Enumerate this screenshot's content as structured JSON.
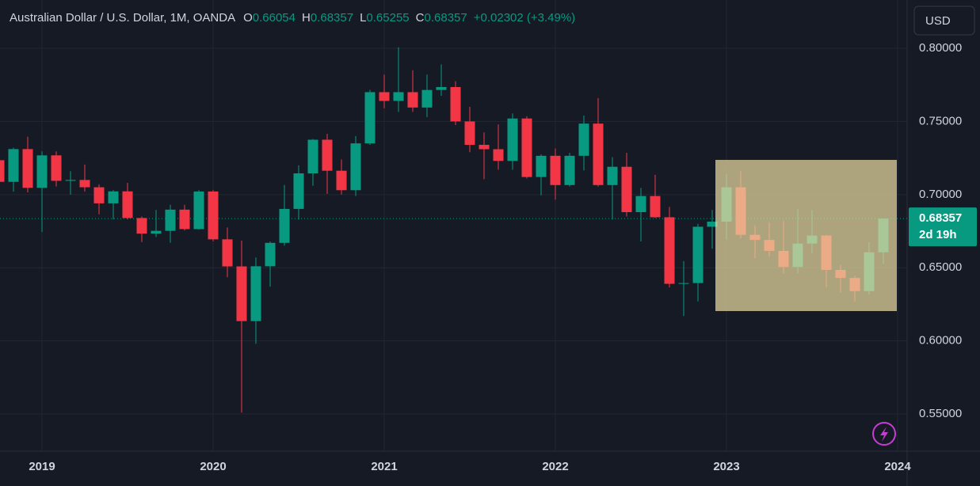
{
  "chart_data": {
    "type": "candlestick",
    "title": "Australian Dollar / U.S. Dollar, 1M, OANDA",
    "ohlc_labels": [
      "O",
      "H",
      "L",
      "C"
    ],
    "change_label": "+0.02302 (+3.49%)",
    "currency": "USD",
    "countdown": "2d 19h",
    "up_color": "#089981",
    "down_color": "#f23645",
    "categories": [
      null,
      null,
      null,
      null,
      null,
      null,
      null,
      null,
      null,
      null,
      null,
      null,
      null,
      null,
      null,
      null,
      null,
      null,
      null,
      null,
      null,
      null,
      null,
      null,
      null,
      null,
      null,
      null,
      null,
      null,
      null,
      null,
      null,
      null,
      null,
      null,
      null,
      null,
      null,
      null,
      null,
      null,
      null,
      null,
      null,
      null,
      null,
      null,
      null,
      null,
      null,
      null,
      null,
      null,
      null,
      null,
      null,
      null,
      null,
      null,
      null,
      null,
      null
    ],
    "open": [
      0.7235,
      0.7087,
      0.7311,
      0.7046,
      0.7268,
      0.7094,
      0.71,
      0.705,
      0.694,
      0.7022,
      0.684,
      0.6733,
      0.6752,
      0.6897,
      0.6764,
      0.7021,
      0.6694,
      0.6509,
      0.6135,
      0.651,
      0.667,
      0.6902,
      0.7145,
      0.7375,
      0.7163,
      0.703,
      0.735,
      0.77,
      0.764,
      0.77,
      0.7595,
      0.7715,
      0.7735,
      0.75,
      0.734,
      0.731,
      0.723,
      0.752,
      0.712,
      0.7265,
      0.7065,
      0.7265,
      0.7485,
      0.7065,
      0.719,
      0.688,
      0.699,
      0.6845,
      0.639,
      0.6395,
      0.678,
      0.6815,
      0.705,
      0.6725,
      0.669,
      0.6615,
      0.6505,
      0.6665,
      0.672,
      0.6485,
      0.643,
      0.634,
      0.66054
    ],
    "high": [
      0.724,
      0.732,
      0.7395,
      0.7295,
      0.7295,
      0.716,
      0.7205,
      0.707,
      0.703,
      0.708,
      0.685,
      0.6895,
      0.693,
      0.693,
      0.703,
      0.703,
      0.6775,
      0.6685,
      0.657,
      0.668,
      0.7065,
      0.72,
      0.738,
      0.7415,
      0.724,
      0.74,
      0.7715,
      0.782,
      0.8007,
      0.785,
      0.782,
      0.789,
      0.7775,
      0.76,
      0.7425,
      0.748,
      0.7555,
      0.7535,
      0.7275,
      0.7315,
      0.7285,
      0.754,
      0.766,
      0.7255,
      0.7285,
      0.7045,
      0.7135,
      0.6915,
      0.6545,
      0.68,
      0.6895,
      0.714,
      0.716,
      0.679,
      0.681,
      0.682,
      0.69,
      0.6895,
      0.6725,
      0.652,
      0.6445,
      0.6675,
      0.68357
    ],
    "low": [
      0.702,
      0.702,
      0.7015,
      0.6744,
      0.7055,
      0.7,
      0.702,
      0.6865,
      0.683,
      0.683,
      0.6675,
      0.671,
      0.667,
      0.6755,
      0.676,
      0.668,
      0.6435,
      0.551,
      0.598,
      0.637,
      0.665,
      0.683,
      0.706,
      0.7005,
      0.7,
      0.699,
      0.734,
      0.759,
      0.7565,
      0.7565,
      0.753,
      0.7675,
      0.7475,
      0.729,
      0.7105,
      0.717,
      0.717,
      0.711,
      0.6995,
      0.6965,
      0.7055,
      0.7165,
      0.7055,
      0.683,
      0.685,
      0.668,
      0.684,
      0.6365,
      0.617,
      0.627,
      0.663,
      0.669,
      0.67,
      0.6565,
      0.6575,
      0.646,
      0.646,
      0.66,
      0.6365,
      0.633,
      0.627,
      0.6315,
      0.65255
    ],
    "close": [
      0.7087,
      0.7311,
      0.7046,
      0.7268,
      0.7094,
      0.71,
      0.705,
      0.694,
      0.7022,
      0.684,
      0.6733,
      0.6752,
      0.6897,
      0.6764,
      0.7021,
      0.6694,
      0.6509,
      0.6135,
      0.651,
      0.667,
      0.6902,
      0.7145,
      0.7375,
      0.7163,
      0.703,
      0.735,
      0.77,
      0.764,
      0.77,
      0.7595,
      0.7715,
      0.7735,
      0.75,
      0.734,
      0.731,
      0.723,
      0.752,
      0.712,
      0.7265,
      0.7065,
      0.7265,
      0.7485,
      0.7065,
      0.719,
      0.688,
      0.699,
      0.6845,
      0.639,
      0.6395,
      0.678,
      0.6815,
      0.705,
      0.6725,
      0.669,
      0.6615,
      0.6505,
      0.6665,
      0.672,
      0.6485,
      0.643,
      0.634,
      0.66054,
      0.68357
    ],
    "ylim": [
      0.5246,
      0.833
    ],
    "yticks": [
      {
        "value": 0.55,
        "label": "0.55000"
      },
      {
        "value": 0.6,
        "label": "0.60000"
      },
      {
        "value": 0.65,
        "label": "0.65000"
      },
      {
        "value": 0.7,
        "label": "0.70000"
      },
      {
        "value": 0.75,
        "label": "0.75000"
      },
      {
        "value": 0.8,
        "label": "0.80000"
      }
    ],
    "xticks": [
      {
        "value": 3,
        "label": "2019"
      },
      {
        "value": 15,
        "label": "2020"
      },
      {
        "value": 27,
        "label": "2021"
      },
      {
        "value": 39,
        "label": "2022"
      },
      {
        "value": 51,
        "label": "2023"
      },
      {
        "value": 63,
        "label": "2024"
      }
    ],
    "grid": true
  }
}
